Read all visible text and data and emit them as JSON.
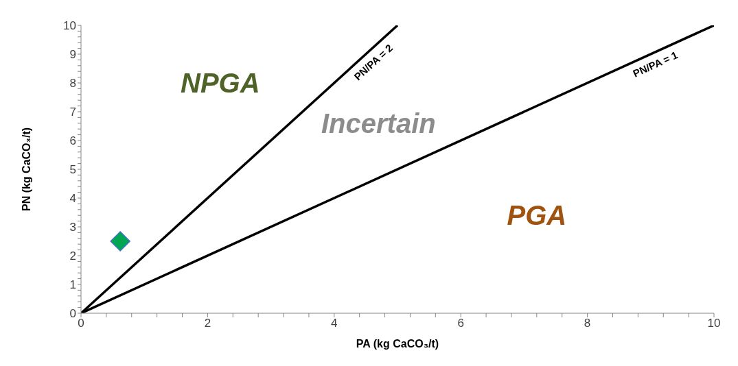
{
  "chart_data": {
    "type": "scatter",
    "xlabel": "PA (kg CaCO₃/t)",
    "ylabel": "PN (kg CaCO₃/t)",
    "xlim": [
      0,
      10
    ],
    "ylim": [
      0,
      10
    ],
    "xticks": [
      0,
      {
        "value": 0.4,
        "label": null
      },
      {
        "value": 0.8,
        "label": null
      },
      {
        "value": 1.2,
        "label": null
      },
      {
        "value": 1.6,
        "label": null
      },
      2,
      {
        "value": 2.4,
        "label": null
      },
      {
        "value": 2.8,
        "label": null
      },
      {
        "value": 3.2,
        "label": null
      },
      {
        "value": 3.6,
        "label": null
      },
      4,
      {
        "value": 4.4,
        "label": null
      },
      {
        "value": 4.8,
        "label": null
      },
      {
        "value": 5.2,
        "label": null
      },
      {
        "value": 5.6,
        "label": null
      },
      6,
      {
        "value": 6.4,
        "label": null
      },
      {
        "value": 6.8,
        "label": null
      },
      {
        "value": 7.2,
        "label": null
      },
      {
        "value": 7.6,
        "label": null
      },
      8,
      {
        "value": 8.4,
        "label": null
      },
      {
        "value": 8.8,
        "label": null
      },
      {
        "value": 9.2,
        "label": null
      },
      {
        "value": 9.6,
        "label": null
      },
      10
    ],
    "yticks": [
      0,
      {
        "value": 0.2,
        "label": null
      },
      {
        "value": 0.4,
        "label": null
      },
      {
        "value": 0.6,
        "label": null
      },
      {
        "value": 0.8,
        "label": null
      },
      1,
      {
        "value": 1.2,
        "label": null
      },
      {
        "value": 1.4,
        "label": null
      },
      {
        "value": 1.6,
        "label": null
      },
      {
        "value": 1.8,
        "label": null
      },
      2,
      {
        "value": 2.2,
        "label": null
      },
      {
        "value": 2.4,
        "label": null
      },
      {
        "value": 2.6,
        "label": null
      },
      {
        "value": 2.8,
        "label": null
      },
      3,
      {
        "value": 3.2,
        "label": null
      },
      {
        "value": 3.4,
        "label": null
      },
      {
        "value": 3.6,
        "label": null
      },
      {
        "value": 3.8,
        "label": null
      },
      4,
      {
        "value": 4.2,
        "label": null
      },
      {
        "value": 4.4,
        "label": null
      },
      {
        "value": 4.6,
        "label": null
      },
      {
        "value": 4.8,
        "label": null
      },
      5,
      {
        "value": 5.2,
        "label": null
      },
      {
        "value": 5.4,
        "label": null
      },
      {
        "value": 5.6,
        "label": null
      },
      {
        "value": 5.8,
        "label": null
      },
      6,
      {
        "value": 6.2,
        "label": null
      },
      {
        "value": 6.4,
        "label": null
      },
      {
        "value": 6.6,
        "label": null
      },
      {
        "value": 6.8,
        "label": null
      },
      7,
      {
        "value": 7.2,
        "label": null
      },
      {
        "value": 7.4,
        "label": null
      },
      {
        "value": 7.6,
        "label": null
      },
      {
        "value": 7.8,
        "label": null
      },
      8,
      {
        "value": 8.2,
        "label": null
      },
      {
        "value": 8.4,
        "label": null
      },
      {
        "value": 8.6,
        "label": null
      },
      {
        "value": 8.8,
        "label": null
      },
      9,
      {
        "value": 9.2,
        "label": null
      },
      {
        "value": 9.4,
        "label": null
      },
      {
        "value": 9.6,
        "label": null
      },
      {
        "value": 9.8,
        "label": null
      },
      10
    ],
    "series": [
      {
        "type": "line",
        "color": "#000000",
        "x": [
          0,
          5
        ],
        "values": [
          0,
          10
        ],
        "marker": "none",
        "line_style": "solid"
      },
      {
        "type": "line",
        "color": "#000000",
        "x": [
          0,
          10
        ],
        "values": [
          0,
          10
        ],
        "marker": "none",
        "line_style": "solid"
      },
      {
        "color": "#00a651",
        "x": [
          0.62
        ],
        "values": [
          2.5
        ],
        "marker": "diamond"
      }
    ],
    "annotations": [
      {
        "text": "PN/PA = 2",
        "x": 4.5,
        "y": 9
      },
      {
        "text": "PN/PA = 1",
        "x": 9,
        "y": 9
      },
      "NPGA",
      "Incertain",
      "PGA"
    ]
  }
}
